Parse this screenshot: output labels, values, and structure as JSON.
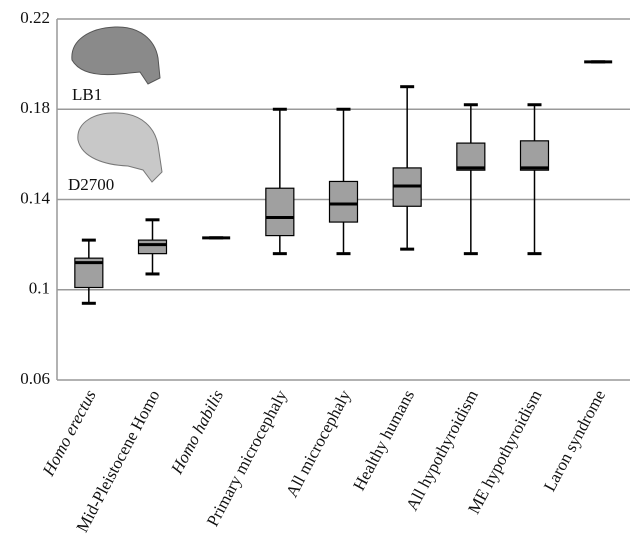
{
  "chart_data": {
    "type": "box",
    "categories": [
      "Homo erectus",
      "Mid-Pleistocene Homo",
      "Homo habilis",
      "Primary microcephaly",
      "All microcephaly",
      "Healthy humans",
      "All hypothyroidism",
      "ME hypothyroidism",
      "Laron syndrome"
    ],
    "italic": [
      true,
      false,
      true,
      false,
      false,
      false,
      false,
      false,
      false
    ],
    "min": [
      0.094,
      0.107,
      0.123,
      0.116,
      0.116,
      0.118,
      0.116,
      0.116,
      0.201
    ],
    "q1": [
      0.101,
      0.116,
      0.123,
      0.124,
      0.13,
      0.137,
      0.153,
      0.153,
      0.201
    ],
    "median": [
      0.112,
      0.12,
      0.123,
      0.132,
      0.138,
      0.146,
      0.154,
      0.154,
      0.201
    ],
    "q3": [
      0.114,
      0.122,
      0.123,
      0.145,
      0.148,
      0.154,
      0.165,
      0.166,
      0.201
    ],
    "max": [
      0.122,
      0.131,
      0.123,
      0.18,
      0.18,
      0.19,
      0.182,
      0.182,
      0.201
    ],
    "color": "#a0a0a0",
    "ylim": [
      0.06,
      0.22
    ],
    "yticks": [
      0.06,
      0.1,
      0.14,
      0.18,
      0.22
    ],
    "grid": true,
    "annotations": [
      "LB1",
      "D2700"
    ]
  }
}
